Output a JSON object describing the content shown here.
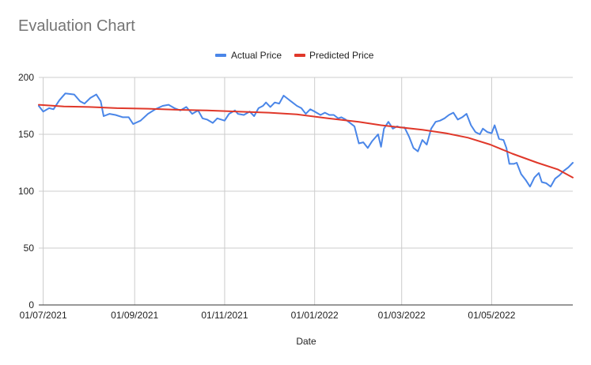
{
  "chart_data": {
    "type": "line",
    "title": "Evaluation Chart",
    "xlabel": "Date",
    "ylabel": "",
    "ylim": [
      0,
      200
    ],
    "yticks": [
      0,
      50,
      100,
      150,
      200
    ],
    "xlim": [
      "2021-06-28",
      "2022-06-25"
    ],
    "xticks": [
      "01/07/2021",
      "01/09/2021",
      "01/11/2021",
      "01/01/2022",
      "01/03/2022",
      "01/05/2022"
    ],
    "xtick_dates": [
      "2021-07-01",
      "2021-09-01",
      "2021-11-01",
      "2022-01-01",
      "2022-03-01",
      "2022-05-01"
    ],
    "grid": true,
    "legend_position": "top",
    "series": [
      {
        "name": "Actual Price",
        "color": "#4a86e8",
        "points": [
          [
            "2021-06-28",
            175
          ],
          [
            "2021-07-01",
            170
          ],
          [
            "2021-07-05",
            173
          ],
          [
            "2021-07-08",
            172
          ],
          [
            "2021-07-12",
            180
          ],
          [
            "2021-07-16",
            186
          ],
          [
            "2021-07-22",
            185
          ],
          [
            "2021-07-26",
            179
          ],
          [
            "2021-07-29",
            177
          ],
          [
            "2021-08-02",
            182
          ],
          [
            "2021-08-06",
            185
          ],
          [
            "2021-08-09",
            179
          ],
          [
            "2021-08-11",
            166
          ],
          [
            "2021-08-15",
            168
          ],
          [
            "2021-08-19",
            167
          ],
          [
            "2021-08-24",
            165
          ],
          [
            "2021-08-28",
            165
          ],
          [
            "2021-08-31",
            159
          ],
          [
            "2021-09-05",
            162
          ],
          [
            "2021-09-10",
            168
          ],
          [
            "2021-09-15",
            172
          ],
          [
            "2021-09-20",
            175
          ],
          [
            "2021-09-24",
            176
          ],
          [
            "2021-09-28",
            173
          ],
          [
            "2021-10-02",
            171
          ],
          [
            "2021-10-06",
            174
          ],
          [
            "2021-10-10",
            168
          ],
          [
            "2021-10-14",
            171
          ],
          [
            "2021-10-17",
            164
          ],
          [
            "2021-10-20",
            163
          ],
          [
            "2021-10-24",
            160
          ],
          [
            "2021-10-27",
            164
          ],
          [
            "2021-11-01",
            162
          ],
          [
            "2021-11-04",
            168
          ],
          [
            "2021-11-08",
            171
          ],
          [
            "2021-11-10",
            168
          ],
          [
            "2021-11-14",
            167
          ],
          [
            "2021-11-18",
            170
          ],
          [
            "2021-11-21",
            166
          ],
          [
            "2021-11-24",
            173
          ],
          [
            "2021-11-27",
            175
          ],
          [
            "2021-11-29",
            178
          ],
          [
            "2021-12-02",
            174
          ],
          [
            "2021-12-05",
            178
          ],
          [
            "2021-12-08",
            177
          ],
          [
            "2021-12-11",
            184
          ],
          [
            "2021-12-14",
            181
          ],
          [
            "2021-12-17",
            178
          ],
          [
            "2021-12-20",
            175
          ],
          [
            "2021-12-23",
            173
          ],
          [
            "2021-12-26",
            168
          ],
          [
            "2021-12-29",
            172
          ],
          [
            "2022-01-01",
            170
          ],
          [
            "2022-01-05",
            167
          ],
          [
            "2022-01-08",
            169
          ],
          [
            "2022-01-11",
            167
          ],
          [
            "2022-01-14",
            167
          ],
          [
            "2022-01-17",
            164
          ],
          [
            "2022-01-19",
            165
          ],
          [
            "2022-01-22",
            163
          ],
          [
            "2022-01-25",
            160
          ],
          [
            "2022-01-28",
            157
          ],
          [
            "2022-01-31",
            142
          ],
          [
            "2022-02-03",
            143
          ],
          [
            "2022-02-06",
            138
          ],
          [
            "2022-02-09",
            144
          ],
          [
            "2022-02-13",
            150
          ],
          [
            "2022-02-15",
            139
          ],
          [
            "2022-02-17",
            155
          ],
          [
            "2022-02-20",
            161
          ],
          [
            "2022-02-23",
            155
          ],
          [
            "2022-02-26",
            157
          ],
          [
            "2022-02-28",
            156
          ],
          [
            "2022-03-03",
            156
          ],
          [
            "2022-03-06",
            148
          ],
          [
            "2022-03-09",
            138
          ],
          [
            "2022-03-12",
            135
          ],
          [
            "2022-03-15",
            145
          ],
          [
            "2022-03-18",
            141
          ],
          [
            "2022-03-21",
            155
          ],
          [
            "2022-03-24",
            161
          ],
          [
            "2022-03-27",
            162
          ],
          [
            "2022-03-30",
            164
          ],
          [
            "2022-04-02",
            167
          ],
          [
            "2022-04-05",
            169
          ],
          [
            "2022-04-08",
            163
          ],
          [
            "2022-04-11",
            165
          ],
          [
            "2022-04-14",
            168
          ],
          [
            "2022-04-17",
            158
          ],
          [
            "2022-04-20",
            152
          ],
          [
            "2022-04-23",
            150
          ],
          [
            "2022-04-25",
            155
          ],
          [
            "2022-04-28",
            152
          ],
          [
            "2022-05-01",
            151
          ],
          [
            "2022-05-03",
            158
          ],
          [
            "2022-05-06",
            146
          ],
          [
            "2022-05-09",
            145
          ],
          [
            "2022-05-11",
            138
          ],
          [
            "2022-05-13",
            124
          ],
          [
            "2022-05-16",
            124
          ],
          [
            "2022-05-18",
            125
          ],
          [
            "2022-05-21",
            115
          ],
          [
            "2022-05-24",
            110
          ],
          [
            "2022-05-27",
            104
          ],
          [
            "2022-05-30",
            112
          ],
          [
            "2022-06-02",
            116
          ],
          [
            "2022-06-04",
            108
          ],
          [
            "2022-06-07",
            107
          ],
          [
            "2022-06-10",
            104
          ],
          [
            "2022-06-13",
            111
          ],
          [
            "2022-06-16",
            114
          ],
          [
            "2022-06-19",
            118
          ],
          [
            "2022-06-22",
            121
          ],
          [
            "2022-06-25",
            125
          ]
        ]
      },
      {
        "name": "Predicted Price",
        "color": "#e0382a",
        "points": [
          [
            "2021-06-28",
            176
          ],
          [
            "2021-07-15",
            174.5
          ],
          [
            "2021-08-01",
            174
          ],
          [
            "2021-08-20",
            173
          ],
          [
            "2021-09-10",
            172.5
          ],
          [
            "2021-10-01",
            171.5
          ],
          [
            "2021-10-20",
            171
          ],
          [
            "2021-11-10",
            170
          ],
          [
            "2021-12-01",
            169
          ],
          [
            "2021-12-20",
            167.5
          ],
          [
            "2022-01-10",
            164
          ],
          [
            "2022-01-31",
            161
          ],
          [
            "2022-02-15",
            158
          ],
          [
            "2022-03-01",
            156
          ],
          [
            "2022-03-15",
            154
          ],
          [
            "2022-03-31",
            151
          ],
          [
            "2022-04-15",
            147
          ],
          [
            "2022-04-30",
            141
          ],
          [
            "2022-05-15",
            133
          ],
          [
            "2022-06-01",
            125
          ],
          [
            "2022-06-15",
            119
          ],
          [
            "2022-06-25",
            112
          ]
        ]
      }
    ]
  }
}
